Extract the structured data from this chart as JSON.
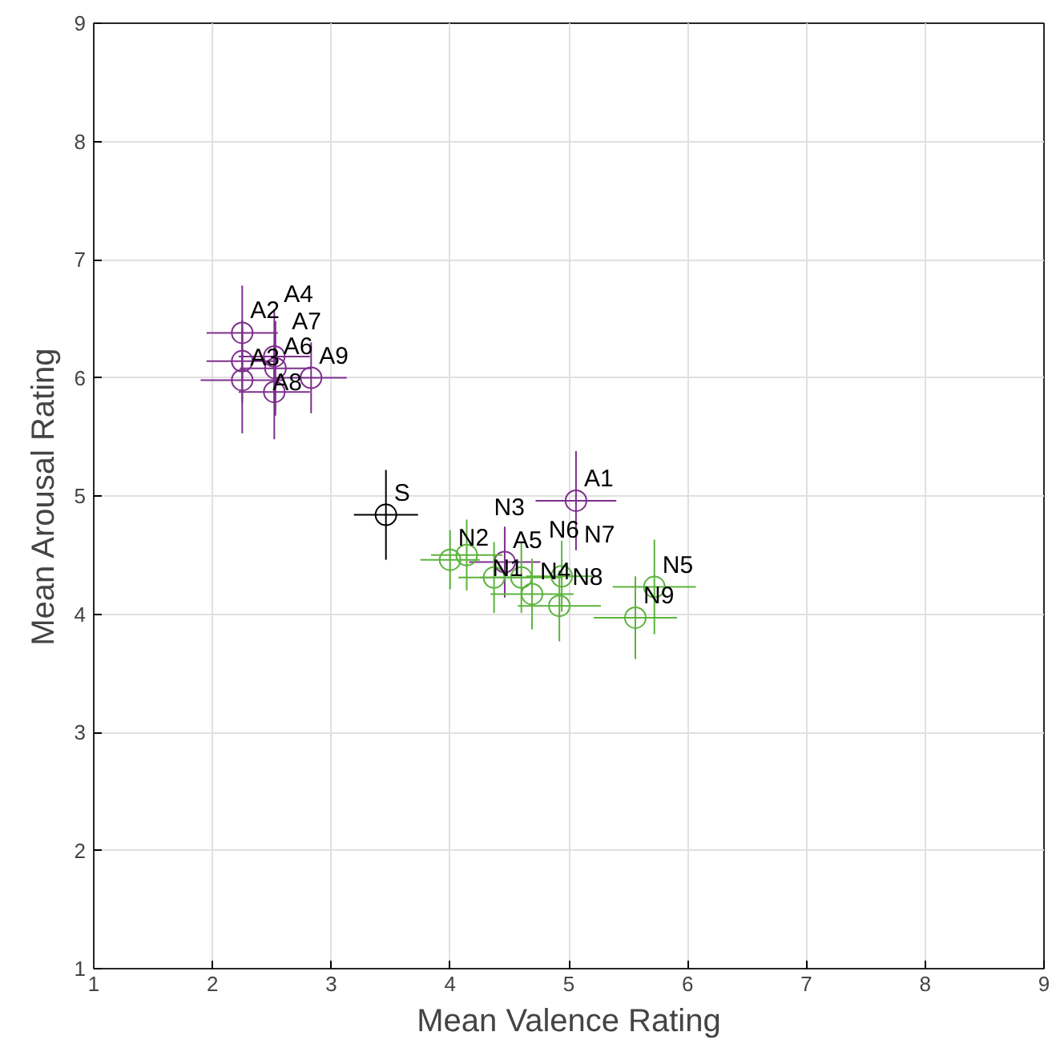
{
  "chart_data": {
    "type": "scatter",
    "xlabel": "Mean Valence Rating",
    "ylabel": "Mean Arousal Rating",
    "xlim": [
      1,
      9
    ],
    "ylim": [
      1,
      9
    ],
    "xticks": [
      1,
      2,
      3,
      4,
      5,
      6,
      7,
      8,
      9
    ],
    "yticks": [
      1,
      2,
      3,
      4,
      5,
      6,
      7,
      8,
      9
    ],
    "grid": true,
    "marker": "circle",
    "series": [
      {
        "color": "#7e2f8e",
        "x": [
          5.06,
          2.25,
          2.25,
          2.25,
          4.46,
          2.53,
          2.52,
          2.52,
          2.83
        ],
        "values": [
          4.96,
          6.38,
          5.98,
          6.14,
          4.44,
          6.08,
          6.18,
          5.88,
          6.0
        ],
        "xerrors": [
          0.34,
          0.3,
          0.35,
          0.3,
          0.3,
          0.3,
          0.3,
          0.3,
          0.3
        ],
        "errors": [
          0.42,
          0.4,
          0.45,
          0.35,
          0.3,
          0.4,
          0.4,
          0.4,
          0.3
        ]
      },
      {
        "color": "#5cb33c",
        "x": [
          4.37,
          4.0,
          4.14,
          4.69,
          5.72,
          4.6,
          4.94,
          4.92,
          5.56
        ],
        "values": [
          4.31,
          4.46,
          4.5,
          4.17,
          4.23,
          4.31,
          4.32,
          4.07,
          3.97
        ],
        "xerrors": [
          0.3,
          0.25,
          0.3,
          0.35,
          0.35,
          0.35,
          0.3,
          0.35,
          0.35
        ],
        "errors": [
          0.3,
          0.25,
          0.3,
          0.3,
          0.4,
          0.3,
          0.3,
          0.3,
          0.35
        ]
      },
      {
        "color": "#000000",
        "x": [
          3.46
        ],
        "values": [
          4.84
        ],
        "xerrors": [
          0.27
        ],
        "errors": [
          0.38
        ]
      }
    ],
    "annotations": [
      {
        "text": "A1",
        "x": 5.06,
        "y": 4.96
      },
      {
        "text": "A2",
        "x": 2.25,
        "y": 6.38
      },
      {
        "text": "A3",
        "x": 2.25,
        "y": 5.98
      },
      {
        "text": "A4",
        "x": 2.25,
        "y": 6.14
      },
      {
        "text": "A5",
        "x": 4.46,
        "y": 4.44
      },
      {
        "text": "A6",
        "x": 2.53,
        "y": 6.08
      },
      {
        "text": "A7",
        "x": 2.52,
        "y": 6.18
      },
      {
        "text": "A8",
        "x": 2.52,
        "y": 5.88
      },
      {
        "text": "A9",
        "x": 2.83,
        "y": 6.0
      },
      {
        "text": "N1",
        "x": 4.37,
        "y": 4.31
      },
      {
        "text": "N2",
        "x": 4.0,
        "y": 4.46
      },
      {
        "text": "N3",
        "x": 4.14,
        "y": 4.5
      },
      {
        "text": "N4",
        "x": 4.69,
        "y": 4.17
      },
      {
        "text": "N5",
        "x": 5.72,
        "y": 4.23
      },
      {
        "text": "N6",
        "x": 4.6,
        "y": 4.31
      },
      {
        "text": "N7",
        "x": 4.94,
        "y": 4.32
      },
      {
        "text": "N8",
        "x": 4.92,
        "y": 4.07
      },
      {
        "text": "N9",
        "x": 5.56,
        "y": 3.97
      },
      {
        "text": "S",
        "x": 3.46,
        "y": 4.84
      }
    ]
  }
}
